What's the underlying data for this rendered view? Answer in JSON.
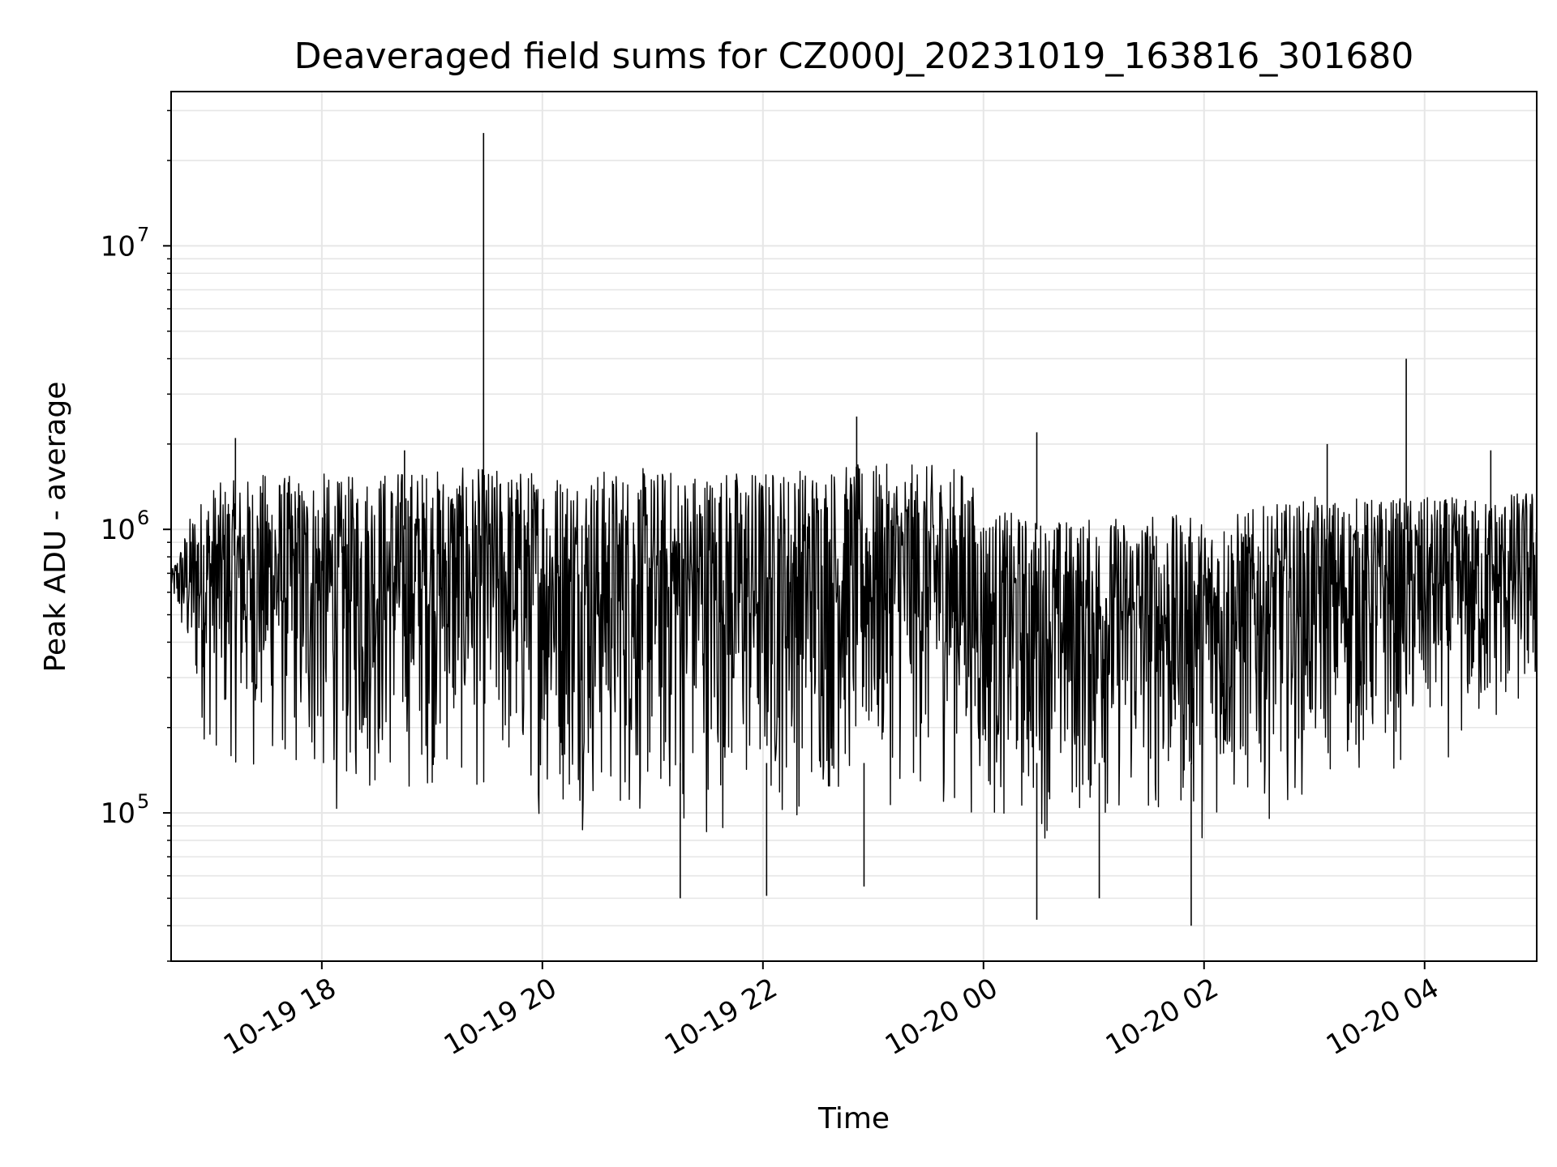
{
  "chart_data": {
    "type": "line",
    "title": "Deaveraged field sums for CZ000J_20231019_163816_301680",
    "xlabel": "Time",
    "ylabel": "Peak ADU - average",
    "yscale": "log",
    "xlim": [
      "2023-10-19 16:38",
      "2023-10-20 05:01"
    ],
    "ylim": [
      30000,
      35000000
    ],
    "x_ticks": [
      {
        "value": "2023-10-19 18:00",
        "label": "10-19 18"
      },
      {
        "value": "2023-10-19 20:00",
        "label": "10-19 20"
      },
      {
        "value": "2023-10-19 22:00",
        "label": "10-19 22"
      },
      {
        "value": "2023-10-20 00:00",
        "label": "10-20 00"
      },
      {
        "value": "2023-10-20 02:00",
        "label": "10-20 02"
      },
      {
        "value": "2023-10-20 04:00",
        "label": "10-20 04"
      }
    ],
    "y_ticks": [
      {
        "value": 100000,
        "base": "10",
        "exp": "5"
      },
      {
        "value": 1000000,
        "base": "10",
        "exp": "6"
      },
      {
        "value": 10000000,
        "base": "10",
        "exp": "7"
      }
    ],
    "grid": true,
    "line_color": "#000000",
    "grid_color": "#e6e6e6",
    "envelope": {
      "x": [
        "2023-10-19 16:38",
        "2023-10-19 16:50",
        "2023-10-19 17:00",
        "2023-10-19 17:15",
        "2023-10-19 17:30",
        "2023-10-19 17:45",
        "2023-10-19 18:00",
        "2023-10-19 18:10",
        "2023-10-19 18:20",
        "2023-10-19 18:40",
        "2023-10-19 19:00",
        "2023-10-19 19:30",
        "2023-10-19 20:00",
        "2023-10-19 20:30",
        "2023-10-19 21:00",
        "2023-10-19 21:30",
        "2023-10-19 22:00",
        "2023-10-19 22:30",
        "2023-10-19 23:00",
        "2023-10-19 23:30",
        "2023-10-19 23:50",
        "2023-10-20 00:00",
        "2023-10-20 00:30",
        "2023-10-20 01:00",
        "2023-10-20 01:30",
        "2023-10-20 02:00",
        "2023-10-20 02:30",
        "2023-10-20 03:00",
        "2023-10-20 03:30",
        "2023-10-20 04:00",
        "2023-10-20 04:30",
        "2023-10-20 05:01"
      ],
      "upper": [
        700000,
        1200000,
        1450000,
        1500000,
        1600000,
        1550000,
        1600000,
        1500000,
        1600000,
        1650000,
        1650000,
        1650000,
        1650000,
        1650000,
        1650000,
        1650000,
        1650000,
        1700000,
        1700000,
        1700000,
        1650000,
        1200000,
        1100000,
        1100000,
        1150000,
        1100000,
        1200000,
        1300000,
        1300000,
        1300000,
        1300000,
        1400000
      ],
      "lower": [
        600000,
        200000,
        140000,
        130000,
        120000,
        110000,
        90000,
        90000,
        95000,
        100000,
        110000,
        100000,
        90000,
        80000,
        75000,
        78000,
        80000,
        90000,
        100000,
        95000,
        95000,
        80000,
        75000,
        80000,
        80000,
        75000,
        90000,
        110000,
        120000,
        140000,
        150000,
        200000
      ]
    },
    "spikes": [
      {
        "x": "2023-10-19 19:28",
        "y": 25000000
      },
      {
        "x": "2023-10-19 22:51",
        "y": 2500000
      },
      {
        "x": "2023-10-20 00:29",
        "y": 2200000
      },
      {
        "x": "2023-10-20 03:07",
        "y": 2000000
      },
      {
        "x": "2023-10-20 03:50",
        "y": 4000000
      },
      {
        "x": "2023-10-19 17:13",
        "y": 2100000
      },
      {
        "x": "2023-10-19 18:45",
        "y": 1900000
      },
      {
        "x": "2023-10-20 04:36",
        "y": 1900000
      }
    ],
    "dips": [
      {
        "x": "2023-10-20 00:29",
        "y": 42000
      },
      {
        "x": "2023-10-20 01:53",
        "y": 40000
      },
      {
        "x": "2023-10-19 21:15",
        "y": 50000
      },
      {
        "x": "2023-10-19 22:02",
        "y": 51000
      },
      {
        "x": "2023-10-19 22:55",
        "y": 55000
      },
      {
        "x": "2023-10-20 01:03",
        "y": 50000
      }
    ]
  }
}
